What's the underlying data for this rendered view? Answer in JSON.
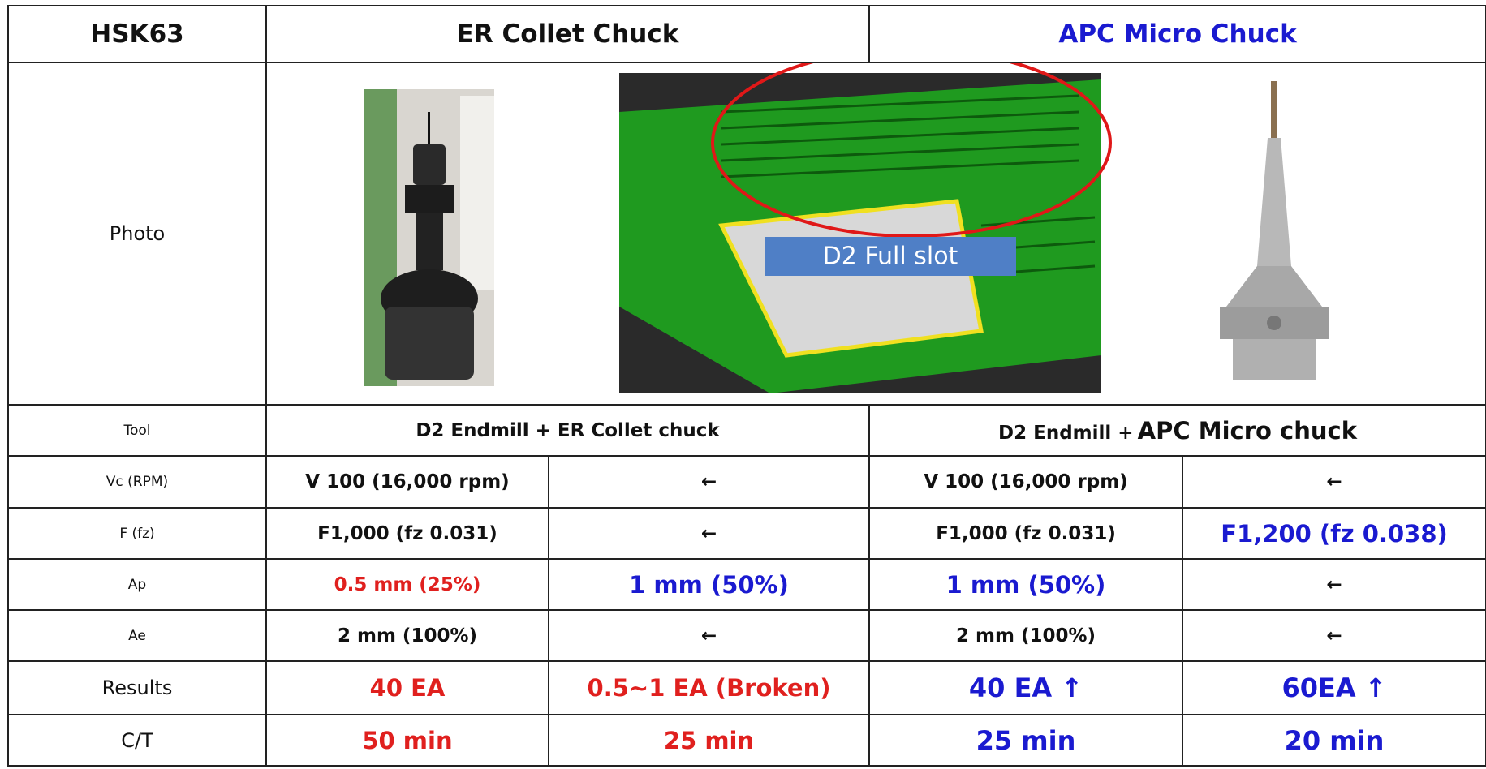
{
  "header": {
    "label": "HSK63",
    "er": "ER Collet Chuck",
    "apc": "APC Micro Chuck"
  },
  "photo_row": {
    "label": "Photo",
    "annotation": "D2 Full slot"
  },
  "tool_row": {
    "label": "Tool",
    "er": "D2 Endmill + ER Collet chuck",
    "apc_prefix": "D2 Endmill +",
    "apc_name": "APC Micro chuck"
  },
  "rows": [
    [
      "Vc (RPM)",
      "V 100  (16,000 rpm)",
      "←",
      "V 100  (16,000 rpm)",
      "←"
    ],
    [
      "F (fz)",
      "F1,000 (fz 0.031)",
      "←",
      "F1,000 (fz 0.031)",
      "F1,200 (fz 0.038)"
    ],
    [
      "Ap",
      "0.5 mm (25%)",
      "1 mm (50%)",
      "1 mm (50%)",
      "←"
    ],
    [
      "Ae",
      "2 mm (100%)",
      "←",
      "2 mm (100%)",
      "←"
    ],
    [
      "Results",
      "40 EA",
      "0.5~1 EA (Broken)",
      "40 EA ↑",
      "60EA ↑"
    ],
    [
      "C/T",
      "50 min",
      "25 min",
      "25 min",
      "20 min"
    ]
  ]
}
